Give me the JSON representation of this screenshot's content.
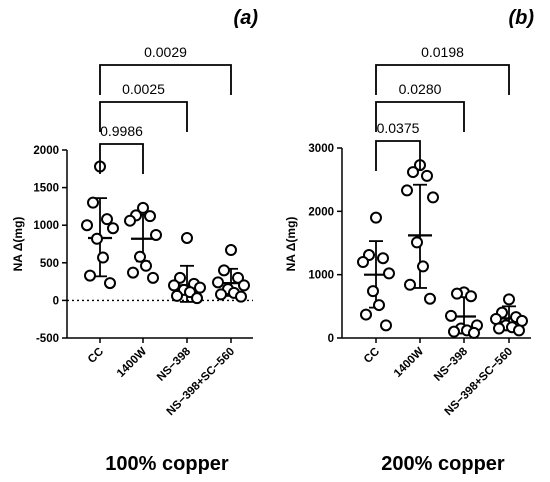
{
  "chart_data": [
    {
      "type": "scatter",
      "tag": "(a)",
      "caption": "100% copper",
      "ylabel": "NA Δ(mg)",
      "ylim": [
        -500,
        2000
      ],
      "yticks": [
        -500,
        0,
        500,
        1000,
        1500,
        2000
      ],
      "zero_line": "dotted",
      "categories": [
        "CC",
        "1400W",
        "NS−398",
        "NS−398+SC−560"
      ],
      "groups": [
        {
          "name": "CC",
          "mean": 830,
          "sd_low": 320,
          "sd_high": 1360,
          "points": [
            1780,
            1300,
            1080,
            1000,
            960,
            820,
            570,
            330,
            230
          ]
        },
        {
          "name": "1400W",
          "mean": 820,
          "sd_low": 520,
          "sd_high": 1140,
          "points": [
            1230,
            1130,
            1120,
            1060,
            870,
            580,
            460,
            370,
            300
          ]
        },
        {
          "name": "NS−398",
          "mean": 200,
          "sd_low": -20,
          "sd_high": 460,
          "points": [
            830,
            300,
            220,
            200,
            170,
            140,
            110,
            60,
            30
          ]
        },
        {
          "name": "NS−398+SC−560",
          "mean": 230,
          "sd_low": 60,
          "sd_high": 420,
          "points": [
            670,
            400,
            300,
            240,
            200,
            150,
            100,
            80,
            50
          ]
        }
      ],
      "comparisons": [
        {
          "from": "CC",
          "to": "1400W",
          "p": "0.9986"
        },
        {
          "from": "CC",
          "to": "NS−398",
          "p": "0.0025"
        },
        {
          "from": "CC",
          "to": "NS−398+SC−560",
          "p": "0.0029"
        }
      ]
    },
    {
      "type": "scatter",
      "tag": "(b)",
      "caption": "200% copper",
      "ylabel": "NA Δ(mg)",
      "ylim": [
        0,
        3000
      ],
      "yticks": [
        0,
        1000,
        2000,
        3000
      ],
      "categories": [
        "CC",
        "1400W",
        "NS−398",
        "NS−398+SC−560"
      ],
      "groups": [
        {
          "name": "CC",
          "mean": 1000,
          "sd_low": 480,
          "sd_high": 1530,
          "points": [
            1900,
            1310,
            1260,
            1200,
            1020,
            740,
            520,
            370,
            200
          ]
        },
        {
          "name": "1400W",
          "mean": 1620,
          "sd_low": 790,
          "sd_high": 2420,
          "points": [
            2730,
            2620,
            2560,
            2330,
            2220,
            1510,
            1130,
            840,
            620
          ]
        },
        {
          "name": "NS−398",
          "mean": 340,
          "sd_low": 80,
          "sd_high": 680,
          "points": [
            720,
            700,
            660,
            350,
            200,
            150,
            120,
            100,
            80
          ]
        },
        {
          "name": "NS−398+SC−560",
          "mean": 310,
          "sd_low": 150,
          "sd_high": 500,
          "points": [
            610,
            400,
            330,
            300,
            270,
            200,
            170,
            150,
            120
          ]
        }
      ],
      "comparisons": [
        {
          "from": "CC",
          "to": "1400W",
          "p": "0.0375"
        },
        {
          "from": "CC",
          "to": "NS−398",
          "p": "0.0280"
        },
        {
          "from": "CC",
          "to": "NS−398+SC−560",
          "p": "0.0198"
        }
      ]
    }
  ]
}
